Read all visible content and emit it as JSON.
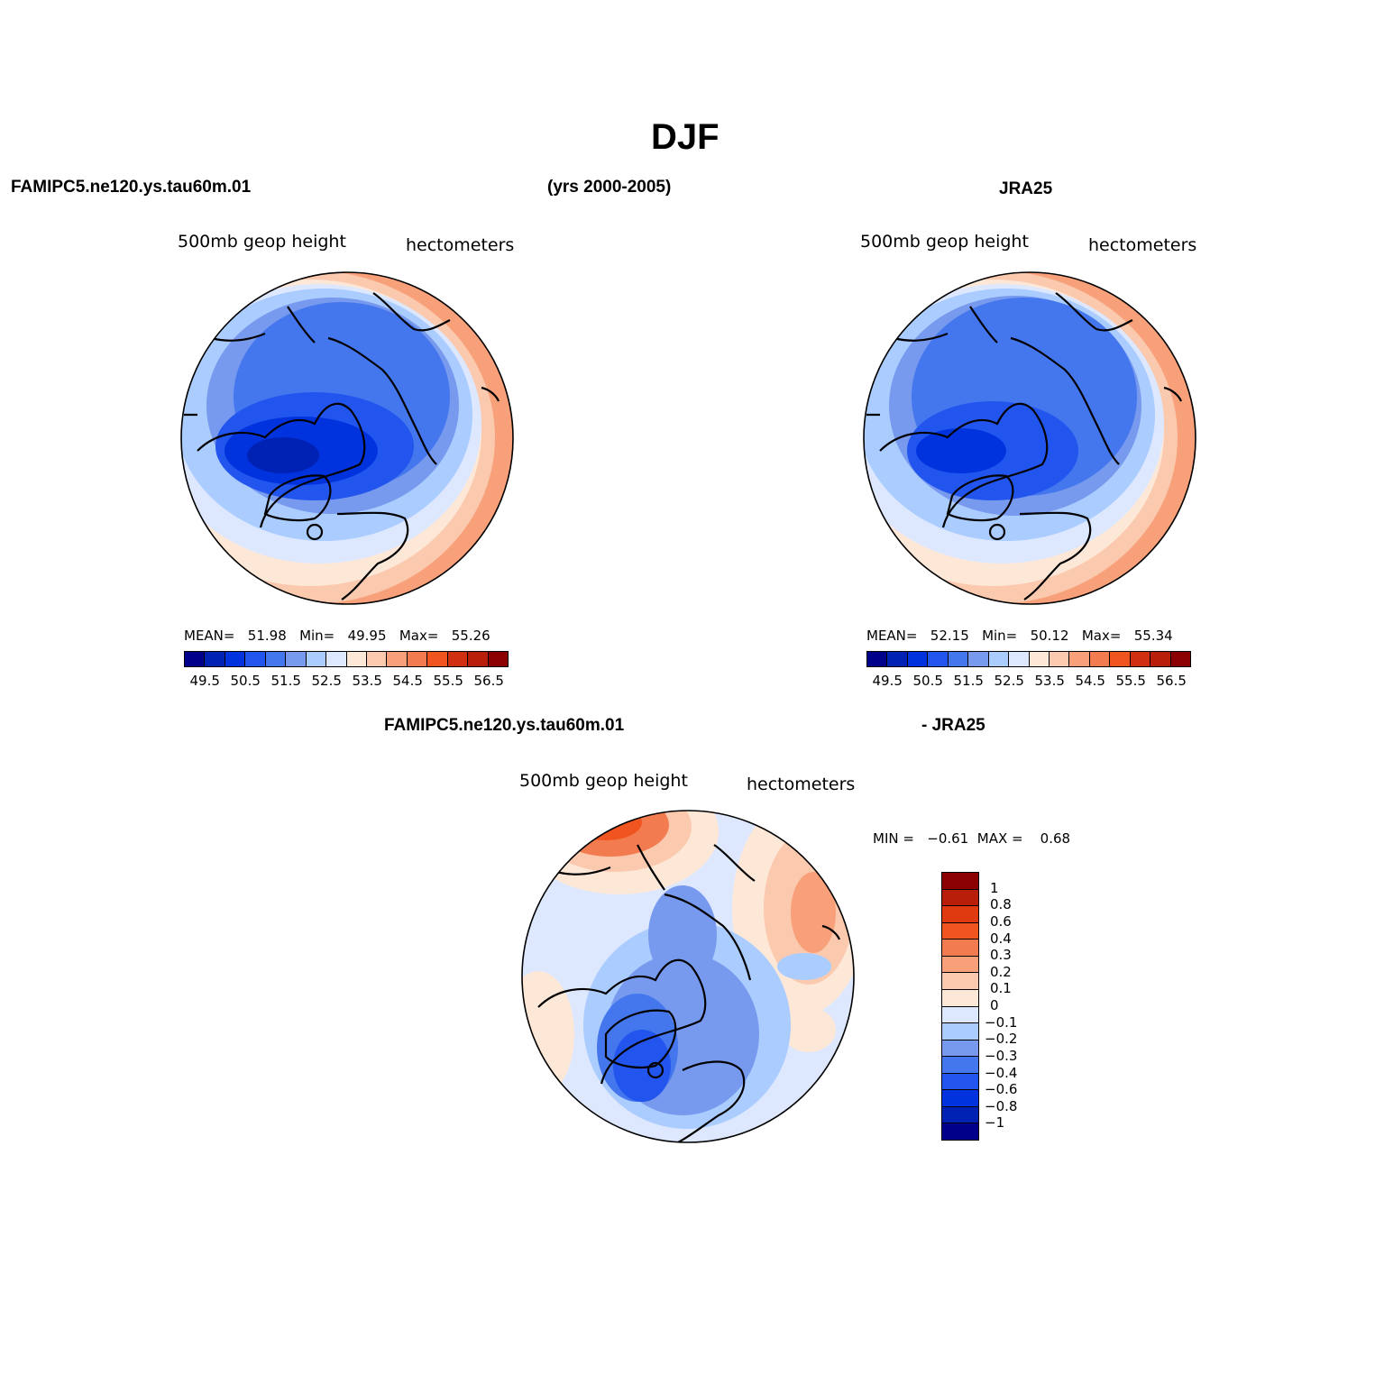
{
  "page_title": "DJF",
  "header": {
    "case_name": "FAMIPC5.ne120.ys.tau60m.01",
    "years": "(yrs 2000-2005)",
    "obs_name": "JRA25"
  },
  "panels": [
    {
      "variable": "500mb  geop  height",
      "units": "hectometers",
      "stats": {
        "mean_label": "MEAN=",
        "mean": "51.98",
        "min_label": "Min=",
        "min": "49.95",
        "max_label": "Max=",
        "max": "55.26"
      }
    },
    {
      "variable": "500mb  geop  height",
      "units": "hectometers",
      "stats": {
        "mean_label": "MEAN=",
        "mean": "52.15",
        "min_label": "Min=",
        "min": "50.12",
        "max_label": "Max=",
        "max": "55.34"
      }
    }
  ],
  "diff_panel": {
    "title_left": "FAMIPC5.ne120.ys.tau60m.01",
    "title_right": "- JRA25",
    "variable": "500mb  geop  height",
    "units": "hectometers",
    "stats": {
      "min_label": "MIN =",
      "min": "−0.61",
      "max_label": "MAX =",
      "max": "0.68"
    }
  },
  "colorbar_abs": {
    "colors": [
      "#00008b",
      "#0022b4",
      "#0033dd",
      "#2255ee",
      "#4477ee",
      "#7799ee",
      "#aaccff",
      "#dde8ff",
      "#fde8d8",
      "#fbc9ae",
      "#f8a07a",
      "#f37b50",
      "#f05520",
      "#d03010",
      "#b81e0a",
      "#8b0000"
    ],
    "labels": [
      "49.5",
      "50.5",
      "51.5",
      "52.5",
      "53.5",
      "54.5",
      "55.5",
      "56.5"
    ]
  },
  "colorbar_diff": {
    "colors_top_to_bottom": [
      "#8b0000",
      "#b81e0a",
      "#e03a10",
      "#f05520",
      "#f37b50",
      "#f8a07a",
      "#fbc9ae",
      "#fde8d8",
      "#dde8ff",
      "#aaccff",
      "#7799ee",
      "#4477ee",
      "#2255ee",
      "#0033dd",
      "#0022b4",
      "#00008b"
    ],
    "labels": [
      "1",
      "0.8",
      "0.6",
      "0.4",
      "0.3",
      "0.2",
      "0.1",
      "0",
      "−0.1",
      "−0.2",
      "−0.3",
      "−0.4",
      "−0.6",
      "−0.8",
      "−1"
    ]
  }
}
